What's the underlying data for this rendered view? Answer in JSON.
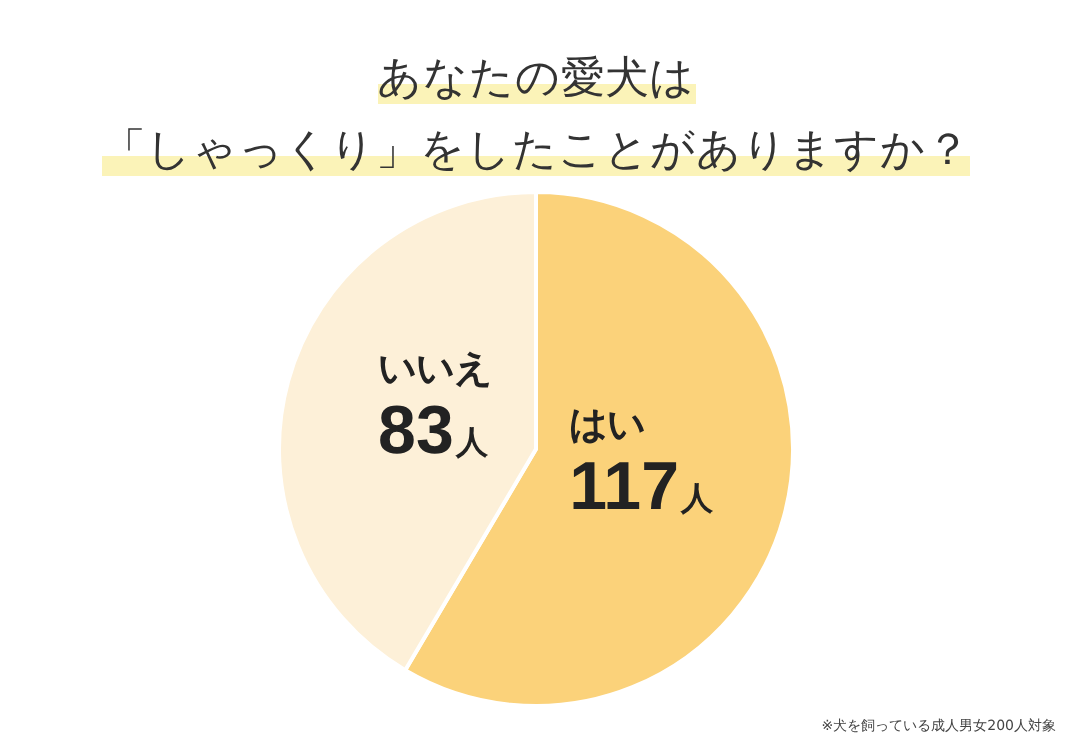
{
  "chart_data": {
    "type": "pie",
    "title": "あなたの愛犬は「しゃっくり」をしたことがありますか？",
    "categories": [
      "はい",
      "いいえ"
    ],
    "values": [
      117,
      83
    ],
    "value_labels": [
      "117人",
      "83人"
    ],
    "colors": [
      "#fbd27a",
      "#fdf0d8"
    ],
    "annotations": [
      "※犬を飼っている成人男女200人対象"
    ],
    "legend": false
  }
}
